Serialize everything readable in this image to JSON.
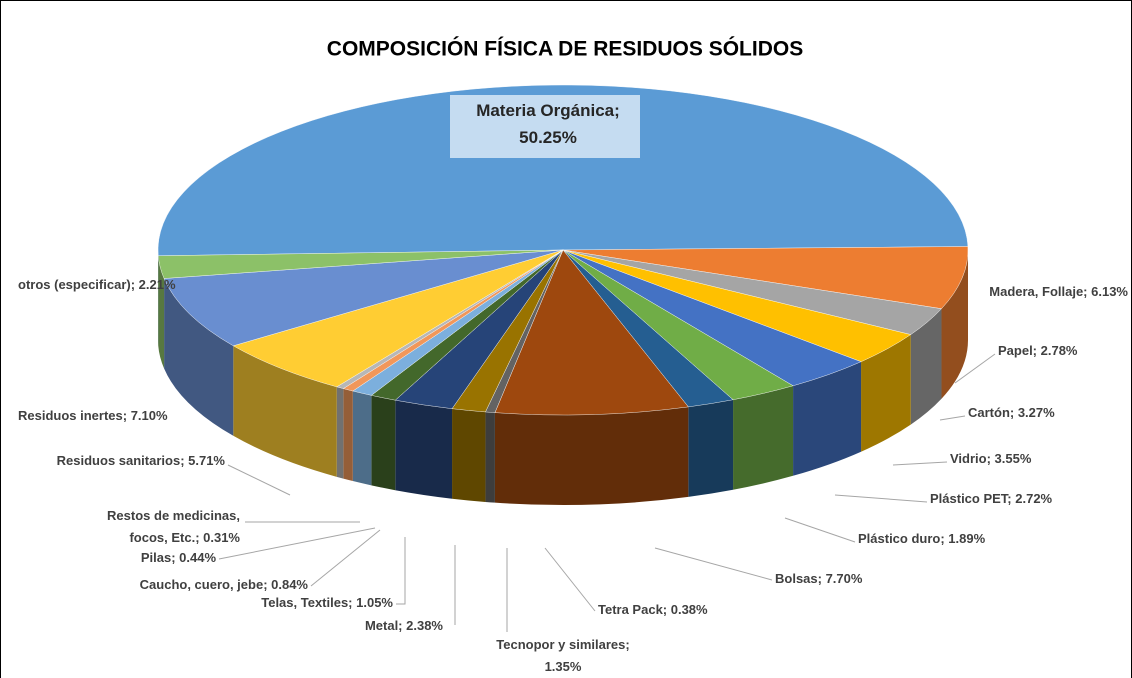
{
  "chart_data": {
    "type": "pie3d",
    "title": "COMPOSICIÓN FÍSICA DE RESIDUOS SÓLIDOS",
    "values": [
      50.25,
      6.13,
      2.78,
      3.27,
      3.55,
      2.72,
      1.89,
      7.7,
      0.38,
      1.35,
      2.38,
      1.05,
      0.84,
      0.44,
      0.31,
      5.71,
      7.1,
      2.21
    ],
    "value_labels": [
      "Materia Orgánica;\n50.25%",
      "Madera, Follaje; 6.13%",
      "Papel; 2.78%",
      "Cartón; 3.27%",
      "Vidrio; 3.55%",
      "Plástico PET; 2.72%",
      "Plástico duro; 1.89%",
      "Bolsas; 7.70%",
      "Tetra Pack; 0.38%",
      "Tecnopor y similares;\n1.35%",
      "Metal; 2.38%",
      "Telas, Textiles; 1.05%",
      "Caucho, cuero, jebe; 0.84%",
      "Pilas; 0.44%",
      "Restos de medicinas,\nfocos, Etc.; 0.31%",
      "Residuos sanitarios; 5.71%",
      "Residuos inertes; 7.10%",
      "otros (especificar); 2.21%"
    ],
    "colors": [
      "#5b9bd5",
      "#ed7d31",
      "#a5a5a5",
      "#ffc000",
      "#4472c4",
      "#70ad47",
      "#255e91",
      "#9e480e",
      "#636363",
      "#997300",
      "#264478",
      "#43682b",
      "#7cafdd",
      "#f1975a",
      "#b7b7b7",
      "#ffcd33",
      "#698ed0",
      "#8cc168"
    ]
  }
}
